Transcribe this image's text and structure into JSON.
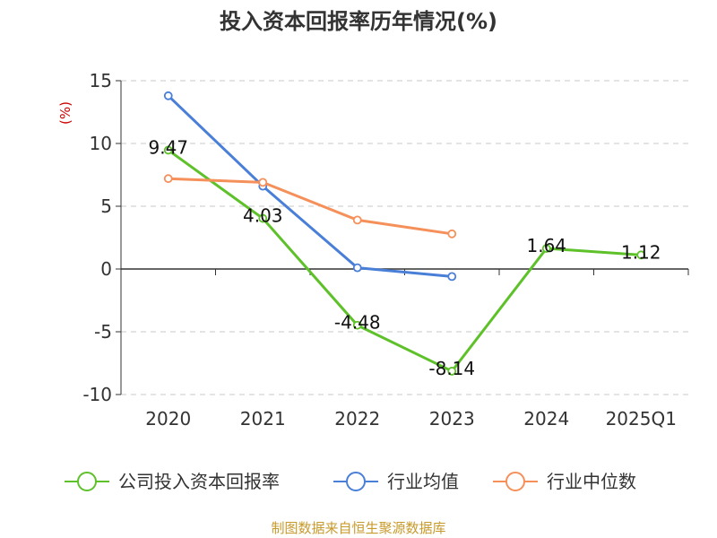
{
  "chart_data": {
    "type": "line",
    "title": "投入资本回报率历年情况(%)",
    "ylabel": "(%)",
    "xlabel": "",
    "categories": [
      "2020",
      "2021",
      "2022",
      "2023",
      "2024",
      "2025Q1"
    ],
    "ylim": [
      -10,
      15
    ],
    "yticks": [
      15,
      10,
      5,
      0,
      -5,
      -10
    ],
    "grid": true,
    "legend_position": "bottom",
    "series": [
      {
        "name": "公司投入资本回报率",
        "color": "#5ec12a",
        "values": [
          9.47,
          4.03,
          -4.48,
          -8.14,
          1.64,
          1.12
        ],
        "labels": [
          "9.47",
          "4.03",
          "-4.48",
          "-8.14",
          "1.64",
          "1.12"
        ]
      },
      {
        "name": "行业均值",
        "color": "#4a7fd8",
        "values": [
          13.8,
          6.6,
          0.1,
          -0.6,
          null,
          null
        ]
      },
      {
        "name": "行业中位数",
        "color": "#f5905a",
        "values": [
          7.2,
          6.9,
          3.9,
          2.8,
          null,
          null
        ]
      }
    ],
    "source": "制图数据来自恒生聚源数据库"
  }
}
